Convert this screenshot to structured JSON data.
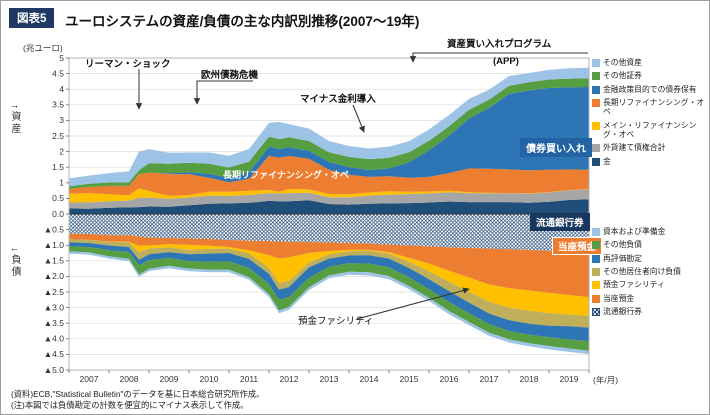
{
  "figure": {
    "tag": "図表5",
    "title": "ユーロシステムの資産/負債の主な内訳別推移(2007〜19年)",
    "unit_label": "(兆ユーロ)",
    "axis_left_top": "↑資産",
    "axis_left_bottom": "↓負債",
    "x_axis_suffix": "(年/月)",
    "notes": [
      "(資料)ECB,\"Statistical Bulletin\"のデータを基に日本総合研究所作成。",
      "(注)本図では負債勘定の計数を便宜的にマイナス表示して作成。"
    ]
  },
  "annotations": {
    "lehman": "リーマン・ショック",
    "debt_crisis": "欧州債務危機",
    "negative_rate": "マイナス金利導入",
    "app": "資産買い入れプログラム",
    "app_sub": "(APP)",
    "bond_buying": "債券買い入れ",
    "ltro_label": "長期リファイナンシング・オペ",
    "banknotes_label": "流通銀行券",
    "current_account_label": "当座預金",
    "deposit_facility_label": "預金ファシリティ"
  },
  "chart_data": {
    "type": "area",
    "stacked": true,
    "unit": "兆ユーロ",
    "xlim": [
      2007,
      2020
    ],
    "ylim": [
      -5,
      5
    ],
    "grid": true,
    "legend_position": "right",
    "x": [
      2007.0,
      2007.5,
      2008.0,
      2008.5,
      2008.75,
      2009.0,
      2009.5,
      2010.0,
      2010.5,
      2011.0,
      2011.5,
      2012.0,
      2012.25,
      2012.5,
      2013.0,
      2013.5,
      2014.0,
      2014.5,
      2015.0,
      2015.5,
      2016.0,
      2016.5,
      2017.0,
      2017.5,
      2018.0,
      2018.5,
      2019.0,
      2019.5,
      2020.0
    ],
    "x_ticks": [
      "2007",
      "2008",
      "2009",
      "2010",
      "2011",
      "2012",
      "2013",
      "2014",
      "2015",
      "2016",
      "2017",
      "2018",
      "2019"
    ],
    "y_ticks": [
      {
        "v": 5,
        "label": "5"
      },
      {
        "v": 4.5,
        "label": "4.5"
      },
      {
        "v": 4,
        "label": "4"
      },
      {
        "v": 3.5,
        "label": "3.5"
      },
      {
        "v": 3,
        "label": "3"
      },
      {
        "v": 2.5,
        "label": "2.5"
      },
      {
        "v": 2,
        "label": "2"
      },
      {
        "v": 1.5,
        "label": "1.5"
      },
      {
        "v": 1,
        "label": "1"
      },
      {
        "v": 0.5,
        "label": "0.5"
      },
      {
        "v": 0,
        "label": "0.0"
      },
      {
        "v": -0.5,
        "label": "▲0.5"
      },
      {
        "v": -1,
        "label": "▲1.0"
      },
      {
        "v": -1.5,
        "label": "▲1.5"
      },
      {
        "v": -2,
        "label": "▲2.0"
      },
      {
        "v": -2.5,
        "label": "▲2.5"
      },
      {
        "v": -3,
        "label": "▲3.0"
      },
      {
        "v": -3.5,
        "label": "▲3.5"
      },
      {
        "v": -4,
        "label": "▲4.0"
      },
      {
        "v": -4.5,
        "label": "▲4.5"
      },
      {
        "v": -5,
        "label": "▲5.0"
      }
    ],
    "asset_series": [
      {
        "key": "gold",
        "name": "金",
        "color": "#1f4e79",
        "values": [
          0.18,
          0.17,
          0.2,
          0.21,
          0.22,
          0.24,
          0.23,
          0.28,
          0.33,
          0.34,
          0.36,
          0.42,
          0.41,
          0.41,
          0.44,
          0.32,
          0.3,
          0.33,
          0.34,
          0.35,
          0.37,
          0.4,
          0.38,
          0.38,
          0.38,
          0.36,
          0.39,
          0.45,
          0.47
        ]
      },
      {
        "key": "fx-claims",
        "name": "外貨建て債権合計",
        "color": "#a6a6a6",
        "values": [
          0.19,
          0.2,
          0.21,
          0.22,
          0.3,
          0.28,
          0.26,
          0.25,
          0.26,
          0.24,
          0.25,
          0.25,
          0.25,
          0.26,
          0.24,
          0.22,
          0.24,
          0.26,
          0.28,
          0.29,
          0.29,
          0.3,
          0.29,
          0.28,
          0.28,
          0.29,
          0.3,
          0.31,
          0.32
        ]
      },
      {
        "key": "mro",
        "name": "メイン・リファイナンシング・オペ",
        "color": "#ffc000",
        "values": [
          0.28,
          0.3,
          0.22,
          0.17,
          0.3,
          0.22,
          0.09,
          0.08,
          0.12,
          0.13,
          0.13,
          0.1,
          0.05,
          0.13,
          0.11,
          0.1,
          0.09,
          0.1,
          0.11,
          0.07,
          0.06,
          0.05,
          0.03,
          0.02,
          0.01,
          0.01,
          0.01,
          0.01,
          0.01
        ]
      },
      {
        "key": "ltro",
        "name": "長期リファイナンシング・オペ",
        "color": "#ed7d31",
        "values": [
          0.15,
          0.2,
          0.27,
          0.3,
          0.45,
          0.59,
          0.7,
          0.67,
          0.45,
          0.31,
          0.39,
          1.1,
          1.09,
          1.06,
          0.98,
          0.78,
          0.63,
          0.5,
          0.48,
          0.45,
          0.47,
          0.56,
          0.76,
          0.77,
          0.76,
          0.74,
          0.72,
          0.66,
          0.62
        ]
      },
      {
        "key": "policy-bonds",
        "name": "金融政策目的での債券保有",
        "color": "#2e75b6",
        "values": [
          0,
          0,
          0,
          0,
          0,
          0,
          0.02,
          0.06,
          0.13,
          0.14,
          0.21,
          0.28,
          0.28,
          0.28,
          0.26,
          0.25,
          0.24,
          0.22,
          0.25,
          0.5,
          0.85,
          1.2,
          1.6,
          1.95,
          2.42,
          2.56,
          2.62,
          2.63,
          2.65
        ]
      },
      {
        "key": "other-securities",
        "name": "その他証券",
        "color": "#579d42",
        "values": [
          0.09,
          0.1,
          0.11,
          0.12,
          0.13,
          0.3,
          0.31,
          0.3,
          0.32,
          0.33,
          0.34,
          0.33,
          0.32,
          0.32,
          0.31,
          0.31,
          0.33,
          0.35,
          0.34,
          0.32,
          0.31,
          0.3,
          0.28,
          0.26,
          0.26,
          0.26,
          0.27,
          0.28,
          0.28
        ]
      },
      {
        "key": "other-assets",
        "name": "その他資産",
        "color": "#9dc3e6",
        "values": [
          0.25,
          0.26,
          0.3,
          0.35,
          0.6,
          0.45,
          0.35,
          0.33,
          0.36,
          0.38,
          0.4,
          0.44,
          0.55,
          0.42,
          0.4,
          0.36,
          0.35,
          0.34,
          0.36,
          0.35,
          0.36,
          0.36,
          0.35,
          0.32,
          0.31,
          0.3,
          0.31,
          0.33,
          0.34
        ]
      }
    ],
    "liability_series": [
      {
        "key": "banknotes",
        "name": "流通銀行券",
        "color": "#274e7d",
        "hatch": true,
        "values": [
          0.63,
          0.64,
          0.68,
          0.68,
          0.72,
          0.76,
          0.77,
          0.79,
          0.8,
          0.83,
          0.86,
          0.87,
          0.88,
          0.89,
          0.9,
          0.91,
          0.93,
          0.95,
          0.98,
          1.01,
          1.04,
          1.07,
          1.09,
          1.11,
          1.13,
          1.15,
          1.18,
          1.2,
          1.22
        ]
      },
      {
        "key": "current-accounts",
        "name": "当座預金",
        "color": "#ed7d31",
        "values": [
          0.18,
          0.19,
          0.2,
          0.21,
          0.3,
          0.25,
          0.2,
          0.2,
          0.22,
          0.23,
          0.3,
          0.45,
          0.55,
          0.5,
          0.35,
          0.28,
          0.22,
          0.2,
          0.24,
          0.4,
          0.55,
          0.75,
          0.95,
          1.15,
          1.25,
          1.3,
          1.35,
          1.4,
          1.45
        ]
      },
      {
        "key": "deposit-facility",
        "name": "預金ファシリティ",
        "color": "#ffc000",
        "values": [
          0.0,
          0.0,
          0.01,
          0.02,
          0.2,
          0.1,
          0.1,
          0.16,
          0.1,
          0.05,
          0.1,
          0.4,
          0.78,
          0.75,
          0.3,
          0.1,
          0.05,
          0.03,
          0.05,
          0.12,
          0.25,
          0.35,
          0.45,
          0.55,
          0.62,
          0.65,
          0.65,
          0.62,
          0.6
        ]
      },
      {
        "key": "other-residents",
        "name": "その他居住者向け負債",
        "color": "#bfae5a",
        "values": [
          0.1,
          0.1,
          0.12,
          0.15,
          0.25,
          0.18,
          0.15,
          0.14,
          0.15,
          0.14,
          0.18,
          0.2,
          0.22,
          0.2,
          0.16,
          0.14,
          0.13,
          0.14,
          0.16,
          0.2,
          0.25,
          0.3,
          0.35,
          0.38,
          0.4,
          0.42,
          0.4,
          0.38,
          0.37
        ]
      },
      {
        "key": "revaluation",
        "name": "再評価勘定",
        "color": "#2e75b6",
        "values": [
          0.13,
          0.13,
          0.15,
          0.16,
          0.17,
          0.19,
          0.19,
          0.22,
          0.26,
          0.27,
          0.29,
          0.33,
          0.32,
          0.32,
          0.34,
          0.26,
          0.25,
          0.27,
          0.28,
          0.3,
          0.32,
          0.35,
          0.34,
          0.34,
          0.35,
          0.35,
          0.37,
          0.42,
          0.44
        ]
      },
      {
        "key": "other-liabilities",
        "name": "その他負債",
        "color": "#579d42",
        "values": [
          0.16,
          0.17,
          0.2,
          0.22,
          0.3,
          0.28,
          0.25,
          0.24,
          0.26,
          0.27,
          0.3,
          0.32,
          0.34,
          0.32,
          0.3,
          0.28,
          0.27,
          0.28,
          0.28,
          0.28,
          0.28,
          0.29,
          0.28,
          0.27,
          0.27,
          0.27,
          0.28,
          0.29,
          0.3
        ]
      },
      {
        "key": "capital",
        "name": "資本および準備金",
        "color": "#9dc3e6",
        "values": [
          0.07,
          0.07,
          0.07,
          0.07,
          0.07,
          0.07,
          0.08,
          0.08,
          0.08,
          0.08,
          0.08,
          0.09,
          0.09,
          0.09,
          0.09,
          0.09,
          0.1,
          0.1,
          0.1,
          0.1,
          0.1,
          0.1,
          0.1,
          0.1,
          0.1,
          0.1,
          0.11,
          0.11,
          0.11
        ]
      }
    ]
  }
}
